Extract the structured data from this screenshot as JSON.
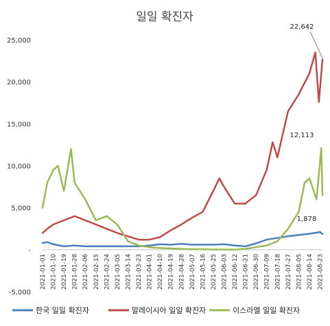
{
  "chart_data": {
    "type": "line",
    "title": "일일 확진자",
    "ylim": [
      -5000,
      25000
    ],
    "y_ticks": [
      25000,
      20000,
      15000,
      10000,
      5000,
      0,
      -5000
    ],
    "y_tick_labels": [
      "25,000",
      "20,000",
      "15,000",
      "10,000",
      "5,000",
      "-",
      "-5,000"
    ],
    "x_range": [
      "2021-01-01",
      "2021-08-25"
    ],
    "x_tick_labels": [
      "2021-01-01",
      "2021-01-10",
      "2021-01-19",
      "2021-01-28",
      "2021-02-06",
      "2021-02-15",
      "2021-02-24",
      "2021-03-05",
      "2021-03-14",
      "2021-03-23",
      "2021-04-01",
      "2021-04-10",
      "2021-04-19",
      "2021-04-28",
      "2021-05-07",
      "2021-05-16",
      "2021-05-25",
      "2021-06-03",
      "2021-06-12",
      "2021-06-21",
      "2021-06-30",
      "2021-07-09",
      "2021-07-18",
      "2021-07-27",
      "2021-08-05",
      "2021-08-14",
      "2021-08-23"
    ],
    "grid": false,
    "legend_position": "bottom",
    "series": [
      {
        "name": "한국 일일 확진자",
        "color": "#4a7ebb",
        "points": [
          [
            "2021-01-01",
            800
          ],
          [
            "2021-01-05",
            900
          ],
          [
            "2021-01-10",
            650
          ],
          [
            "2021-01-19",
            400
          ],
          [
            "2021-01-28",
            500
          ],
          [
            "2021-02-06",
            400
          ],
          [
            "2021-02-15",
            400
          ],
          [
            "2021-02-24",
            400
          ],
          [
            "2021-03-05",
            400
          ],
          [
            "2021-03-14",
            400
          ],
          [
            "2021-03-23",
            400
          ],
          [
            "2021-04-01",
            500
          ],
          [
            "2021-04-10",
            650
          ],
          [
            "2021-04-19",
            600
          ],
          [
            "2021-04-28",
            700
          ],
          [
            "2021-05-07",
            600
          ],
          [
            "2021-05-16",
            600
          ],
          [
            "2021-05-25",
            600
          ],
          [
            "2021-06-03",
            650
          ],
          [
            "2021-06-12",
            500
          ],
          [
            "2021-06-21",
            400
          ],
          [
            "2021-06-30",
            750
          ],
          [
            "2021-07-09",
            1200
          ],
          [
            "2021-07-18",
            1400
          ],
          [
            "2021-07-27",
            1600
          ],
          [
            "2021-08-05",
            1750
          ],
          [
            "2021-08-14",
            1900
          ],
          [
            "2021-08-23",
            2100
          ],
          [
            "2021-08-25",
            1878
          ]
        ]
      },
      {
        "name": "말레이시아 일일 확진자",
        "color": "#be4b48",
        "points": [
          [
            "2021-01-01",
            2000
          ],
          [
            "2021-01-05",
            2500
          ],
          [
            "2021-01-10",
            3000
          ],
          [
            "2021-01-19",
            3500
          ],
          [
            "2021-01-28",
            4000
          ],
          [
            "2021-02-06",
            3500
          ],
          [
            "2021-02-15",
            3000
          ],
          [
            "2021-02-24",
            2500
          ],
          [
            "2021-03-05",
            2000
          ],
          [
            "2021-03-14",
            1600
          ],
          [
            "2021-03-23",
            1200
          ],
          [
            "2021-04-01",
            1200
          ],
          [
            "2021-04-10",
            1500
          ],
          [
            "2021-04-19",
            2300
          ],
          [
            "2021-04-28",
            3000
          ],
          [
            "2021-05-07",
            3800
          ],
          [
            "2021-05-16",
            4500
          ],
          [
            "2021-05-25",
            7000
          ],
          [
            "2021-05-30",
            8500
          ],
          [
            "2021-06-03",
            7500
          ],
          [
            "2021-06-12",
            5500
          ],
          [
            "2021-06-21",
            5500
          ],
          [
            "2021-06-30",
            6500
          ],
          [
            "2021-07-09",
            9500
          ],
          [
            "2021-07-14",
            12800
          ],
          [
            "2021-07-18",
            11000
          ],
          [
            "2021-07-27",
            16500
          ],
          [
            "2021-08-05",
            18500
          ],
          [
            "2021-08-14",
            21000
          ],
          [
            "2021-08-19",
            23500
          ],
          [
            "2021-08-22",
            17600
          ],
          [
            "2021-08-25",
            22642
          ]
        ]
      },
      {
        "name": "이스라엘 일일 확진자",
        "color": "#98b954",
        "points": [
          [
            "2021-01-01",
            5000
          ],
          [
            "2021-01-05",
            8000
          ],
          [
            "2021-01-10",
            9500
          ],
          [
            "2021-01-14",
            10000
          ],
          [
            "2021-01-19",
            7000
          ],
          [
            "2021-01-25",
            12000
          ],
          [
            "2021-01-28",
            8000
          ],
          [
            "2021-02-06",
            6000
          ],
          [
            "2021-02-15",
            3500
          ],
          [
            "2021-02-24",
            4000
          ],
          [
            "2021-03-05",
            3000
          ],
          [
            "2021-03-14",
            1000
          ],
          [
            "2021-03-23",
            500
          ],
          [
            "2021-04-01",
            300
          ],
          [
            "2021-04-10",
            200
          ],
          [
            "2021-04-19",
            150
          ],
          [
            "2021-04-28",
            100
          ],
          [
            "2021-05-07",
            60
          ],
          [
            "2021-05-16",
            50
          ],
          [
            "2021-05-25",
            30
          ],
          [
            "2021-06-03",
            20
          ],
          [
            "2021-06-12",
            15
          ],
          [
            "2021-06-21",
            100
          ],
          [
            "2021-06-30",
            300
          ],
          [
            "2021-07-09",
            500
          ],
          [
            "2021-07-18",
            1000
          ],
          [
            "2021-07-27",
            2500
          ],
          [
            "2021-08-05",
            4500
          ],
          [
            "2021-08-10",
            8000
          ],
          [
            "2021-08-14",
            8500
          ],
          [
            "2021-08-20",
            6000
          ],
          [
            "2021-08-24",
            12113
          ],
          [
            "2021-08-25",
            6500
          ]
        ]
      }
    ],
    "annotations": [
      {
        "series": "말레이시아 일일 확진자",
        "x": "2021-08-25",
        "y": 22642,
        "label": "22,642"
      },
      {
        "series": "이스라엘 일일 확진자",
        "x": "2021-08-24",
        "y": 12113,
        "label": "12,113"
      },
      {
        "series": "한국 일일 확진자",
        "x": "2021-08-25",
        "y": 1878,
        "label": "1,878"
      }
    ]
  }
}
